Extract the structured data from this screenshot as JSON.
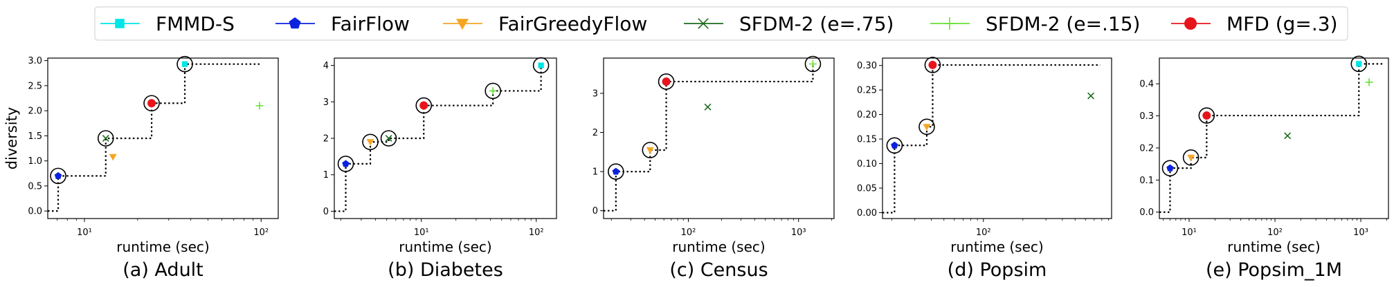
{
  "legend": {
    "placement": "top-center",
    "entries": [
      {
        "name": "FMMD-S",
        "color": "#00e5e5",
        "marker": "square-icon"
      },
      {
        "name": "FairFlow",
        "color": "#0a22e0",
        "marker": "pentagon-icon"
      },
      {
        "name": "FairGreedyFlow",
        "color": "#f5a623",
        "marker": "triangle-down-icon"
      },
      {
        "name": "SFDM-2 (e=.75)",
        "color": "#1a6b1a",
        "marker": "x-icon"
      },
      {
        "name": "SFDM-2 (e=.15)",
        "color": "#66e033",
        "marker": "plus-icon"
      },
      {
        "name": "MFD (g=.3)",
        "color": "#e8141c",
        "marker": "circle-icon"
      }
    ]
  },
  "chart_data": [
    {
      "type": "scatter",
      "caption": "(a) Adult",
      "xlabel": "runtime (sec)",
      "ylabel": "diversity",
      "xscale": "log",
      "xlim": [
        6.2,
        125
      ],
      "ylim": [
        -0.15,
        3.05
      ],
      "xticks": [
        {
          "v": 10,
          "label": "10¹"
        },
        {
          "v": 100,
          "label": "10²"
        }
      ],
      "yticks": [
        {
          "v": 0,
          "label": "0.0"
        },
        {
          "v": 0.5,
          "label": "0.5"
        },
        {
          "v": 1.0,
          "label": "1.0"
        },
        {
          "v": 1.5,
          "label": "1.5"
        },
        {
          "v": 2.0,
          "label": "2.0"
        },
        {
          "v": 2.5,
          "label": "2.5"
        },
        {
          "v": 3.0,
          "label": "3.0"
        }
      ],
      "points": [
        {
          "series": "FairFlow",
          "x": 7.1,
          "y": 0.7
        },
        {
          "series": "SFDM-2 (e=.75)",
          "x": 13.2,
          "y": 1.45
        },
        {
          "series": "FairGreedyFlow",
          "x": 14.5,
          "y": 1.08
        },
        {
          "series": "MFD (g=.3)",
          "x": 24,
          "y": 2.15
        },
        {
          "series": "FMMD-S",
          "x": 37,
          "y": 2.93
        },
        {
          "series": "SFDM-2 (e=.15)",
          "x": 98,
          "y": 2.1
        }
      ],
      "pareto": [
        [
          7.1,
          0.7
        ],
        [
          13.2,
          1.45
        ],
        [
          24,
          2.15
        ],
        [
          37,
          2.93
        ]
      ]
    },
    {
      "type": "scatter",
      "caption": "(b) Diabetes",
      "xlabel": "runtime (sec)",
      "ylabel": "",
      "xscale": "log",
      "xlim": [
        1.75,
        150
      ],
      "ylim": [
        -0.2,
        4.2
      ],
      "xticks": [
        {
          "v": 10,
          "label": "10¹"
        },
        {
          "v": 100,
          "label": "10²"
        }
      ],
      "yticks": [
        {
          "v": 0,
          "label": "0"
        },
        {
          "v": 1,
          "label": "1"
        },
        {
          "v": 2,
          "label": "2"
        },
        {
          "v": 3,
          "label": "3"
        },
        {
          "v": 4,
          "label": "4"
        }
      ],
      "points": [
        {
          "series": "FairFlow",
          "x": 2.2,
          "y": 1.3
        },
        {
          "series": "FairGreedyFlow",
          "x": 3.6,
          "y": 1.9
        },
        {
          "series": "SFDM-2 (e=.75)",
          "x": 5.2,
          "y": 2.0
        },
        {
          "series": "MFD (g=.3)",
          "x": 10.5,
          "y": 2.9
        },
        {
          "series": "SFDM-2 (e=.15)",
          "x": 42,
          "y": 3.3
        },
        {
          "series": "FMMD-S",
          "x": 110,
          "y": 4.0
        }
      ],
      "pareto": [
        [
          2.2,
          1.3
        ],
        [
          3.6,
          1.9
        ],
        [
          5.2,
          2.0
        ],
        [
          10.5,
          2.9
        ],
        [
          42,
          3.3
        ],
        [
          110,
          4.0
        ]
      ]
    },
    {
      "type": "scatter",
      "caption": "(c) Census",
      "xlabel": "runtime (sec)",
      "ylabel": "",
      "xscale": "log",
      "xlim": [
        17,
        2100
      ],
      "ylim": [
        -0.2,
        3.9
      ],
      "xticks": [
        {
          "v": 100,
          "label": "10²"
        },
        {
          "v": 1000,
          "label": "10³"
        }
      ],
      "yticks": [
        {
          "v": 0,
          "label": "0"
        },
        {
          "v": 1,
          "label": "1"
        },
        {
          "v": 2,
          "label": "2"
        },
        {
          "v": 3,
          "label": "3"
        }
      ],
      "points": [
        {
          "series": "FairFlow",
          "x": 22,
          "y": 1.0
        },
        {
          "series": "FairGreedyFlow",
          "x": 45,
          "y": 1.55
        },
        {
          "series": "MFD (g=.3)",
          "x": 63,
          "y": 3.3
        },
        {
          "series": "SFDM-2 (e=.75)",
          "x": 150,
          "y": 2.65
        },
        {
          "series": "SFDM-2 (e=.15)",
          "x": 1350,
          "y": 3.75
        }
      ],
      "pareto": [
        [
          22,
          1.0
        ],
        [
          45,
          1.55
        ],
        [
          63,
          3.3
        ],
        [
          1350,
          3.75
        ]
      ]
    },
    {
      "type": "scatter",
      "caption": "(d) Popsim",
      "xlabel": "runtime (sec)",
      "ylabel": "",
      "xscale": "log",
      "xlim": [
        17,
        950
      ],
      "ylim": [
        -0.012,
        0.315
      ],
      "xticks": [
        {
          "v": 100,
          "label": "10²"
        }
      ],
      "yticks": [
        {
          "v": 0,
          "label": "0.00"
        },
        {
          "v": 0.05,
          "label": "0.05"
        },
        {
          "v": 0.1,
          "label": "0.10"
        },
        {
          "v": 0.15,
          "label": "0.15"
        },
        {
          "v": 0.2,
          "label": "0.20"
        },
        {
          "v": 0.25,
          "label": "0.25"
        },
        {
          "v": 0.3,
          "label": "0.30"
        }
      ],
      "points": [
        {
          "series": "FairFlow",
          "x": 21,
          "y": 0.137
        },
        {
          "series": "FairGreedyFlow",
          "x": 37,
          "y": 0.175
        },
        {
          "series": "MFD (g=.3)",
          "x": 41,
          "y": 0.301
        },
        {
          "series": "SFDM-2 (e=.75)",
          "x": 660,
          "y": 0.238
        }
      ],
      "pareto": [
        [
          21,
          0.137
        ],
        [
          37,
          0.175
        ],
        [
          41,
          0.301
        ],
        [
          780,
          0.301
        ]
      ]
    },
    {
      "type": "scatter",
      "caption": "(e) Popsim_1M",
      "xlabel": "runtime (sec)",
      "ylabel": "",
      "xscale": "log",
      "xlim": [
        4.5,
        2100
      ],
      "ylim": [
        -0.02,
        0.48
      ],
      "xticks": [
        {
          "v": 10,
          "label": "10¹"
        },
        {
          "v": 100,
          "label": "10²"
        },
        {
          "v": 1000,
          "label": "10³"
        }
      ],
      "yticks": [
        {
          "v": 0,
          "label": "0.0"
        },
        {
          "v": 0.1,
          "label": "0.1"
        },
        {
          "v": 0.2,
          "label": "0.2"
        },
        {
          "v": 0.3,
          "label": "0.3"
        },
        {
          "v": 0.4,
          "label": "0.4"
        }
      ],
      "points": [
        {
          "series": "FairFlow",
          "x": 6,
          "y": 0.137
        },
        {
          "series": "FairGreedyFlow",
          "x": 10.5,
          "y": 0.17
        },
        {
          "series": "MFD (g=.3)",
          "x": 16,
          "y": 0.301
        },
        {
          "series": "SFDM-2 (e=.75)",
          "x": 140,
          "y": 0.238
        },
        {
          "series": "FMMD-S",
          "x": 950,
          "y": 0.462
        },
        {
          "series": "SFDM-2 (e=.15)",
          "x": 1250,
          "y": 0.405
        }
      ],
      "pareto": [
        [
          6,
          0.137
        ],
        [
          10.5,
          0.17
        ],
        [
          16,
          0.301
        ],
        [
          950,
          0.462
        ]
      ]
    }
  ]
}
